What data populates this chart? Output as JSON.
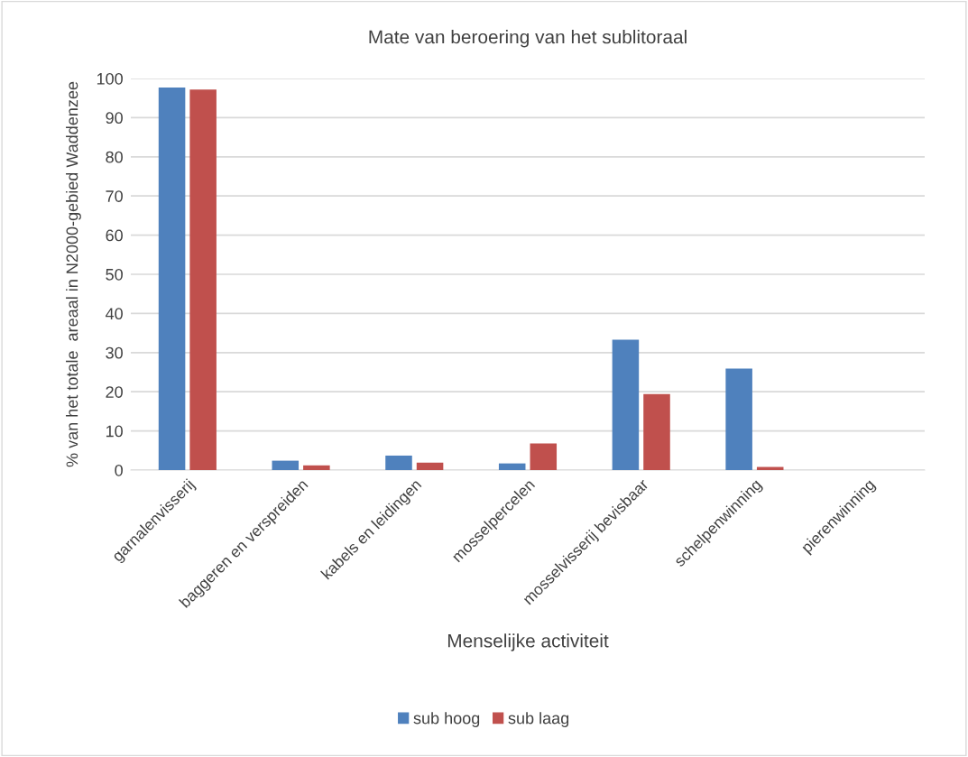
{
  "chart_data": {
    "type": "bar",
    "title": "Mate van beroering van het sublitoraal",
    "xlabel": "Menselijke activiteit",
    "ylabel": "% van het totale  areaal in N2000-gebied Waddenzee",
    "categories": [
      "garnalenvisserij",
      "baggeren en verspreiden",
      "kabels en leidingen",
      "mosselpercelen",
      "mosselvisserij bevisbaar",
      "schelpenwinning",
      "pierenwinning"
    ],
    "series": [
      {
        "name": "sub hoog",
        "color": "#4f81bd",
        "values": [
          97.7,
          2.4,
          3.7,
          1.7,
          33.3,
          25.9,
          0
        ]
      },
      {
        "name": "sub laag",
        "color": "#c0504d",
        "values": [
          97.2,
          1.2,
          1.9,
          6.8,
          19.4,
          0.8,
          0
        ]
      }
    ],
    "ylim": [
      0,
      100
    ],
    "yticks": [
      0,
      10,
      20,
      30,
      40,
      50,
      60,
      70,
      80,
      90,
      100
    ],
    "grid": "y",
    "legend": "bottom"
  }
}
